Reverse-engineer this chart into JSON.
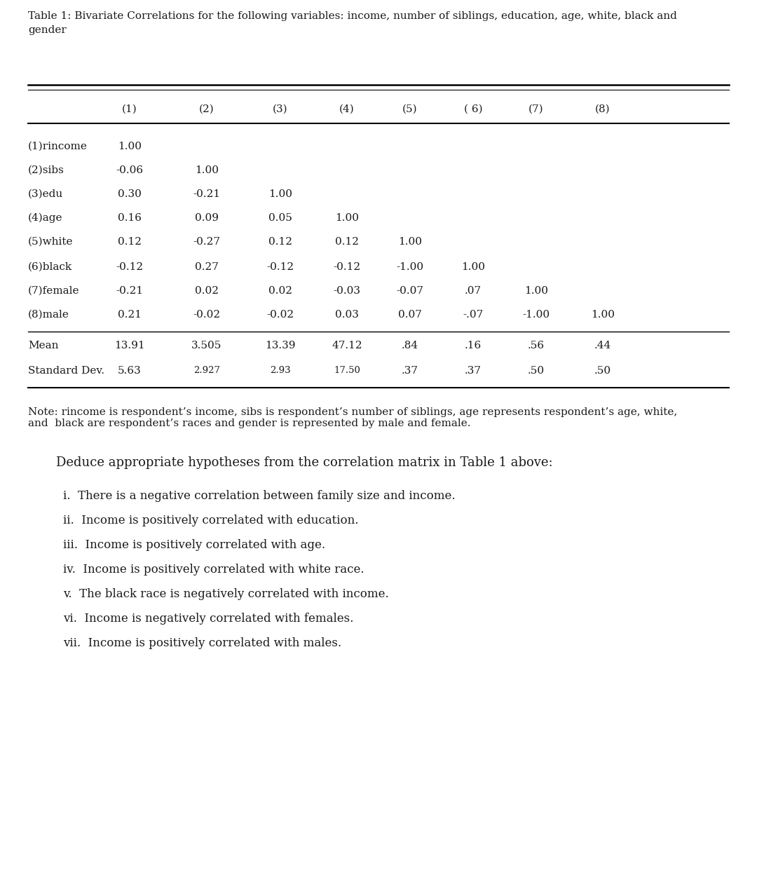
{
  "title_line1": "Table 1: Bivariate Correlations for the following variables: income, number of siblings, education, age, white, black and",
  "title_line2": "gender",
  "bg_color": "#ffffff",
  "text_color": "#1a1a1a",
  "col_headers": [
    "(1)",
    "(2)",
    "(3)",
    "(4)",
    "(5)",
    "( 6)",
    "(7)",
    "(8)"
  ],
  "row_labels": [
    "(1)rincome",
    "(2)sibs",
    "(3)edu",
    "(4)age",
    "(5)white",
    "(6)black",
    "(7)female",
    "(8)male",
    "Mean",
    "Standard Dev."
  ],
  "table_data": [
    [
      "1.00",
      "",
      "",
      "",
      "",
      "",
      "",
      ""
    ],
    [
      "-0.06",
      "1.00",
      "",
      "",
      "",
      "",
      "",
      ""
    ],
    [
      "0.30",
      "-0.21",
      "1.00",
      "",
      "",
      "",
      "",
      ""
    ],
    [
      "0.16",
      "0.09",
      "0.05",
      "1.00",
      "",
      "",
      "",
      ""
    ],
    [
      "0.12",
      "-0.27",
      "0.12",
      "0.12",
      "1.00",
      "",
      "",
      ""
    ],
    [
      "-0.12",
      "0.27",
      "-0.12",
      "-0.12",
      "-1.00",
      "1.00",
      "",
      ""
    ],
    [
      "-0.21",
      "0.02",
      "0.02",
      "-0.03",
      "-0.07",
      ".07",
      "1.00",
      ""
    ],
    [
      "0.21",
      "-0.02",
      "-0.02",
      "0.03",
      "0.07",
      "-.07",
      "-1.00",
      "1.00"
    ],
    [
      "13.91",
      "3.505",
      "13.39",
      "47.12",
      ".84",
      ".16",
      ".56",
      ".44"
    ],
    [
      "5.63",
      "2.927",
      "2.93",
      "17.50",
      ".37",
      ".37",
      ".50",
      ".50"
    ]
  ],
  "stddev_col1_fontsize": 9.5,
  "note": "Note: rincome is respondent’s income, sibs is respondent’s number of siblings, age represents respondent’s age, white,\nand  black are respondent’s races and gender is represented by male and female.",
  "deduce_header": "Deduce appropriate hypotheses from the correlation matrix in Table 1 above:",
  "hypotheses": [
    "i.  There is a negative correlation between family size and income.",
    "ii.  Income is positively correlated with education.",
    "iii.  Income is positively correlated with age.",
    "iv.  Income is positively correlated with white race.",
    "v.  The black race is negatively correlated with income.",
    "vi.  Income is negatively correlated with females.",
    "vii.  Income is positively correlated with males."
  ]
}
